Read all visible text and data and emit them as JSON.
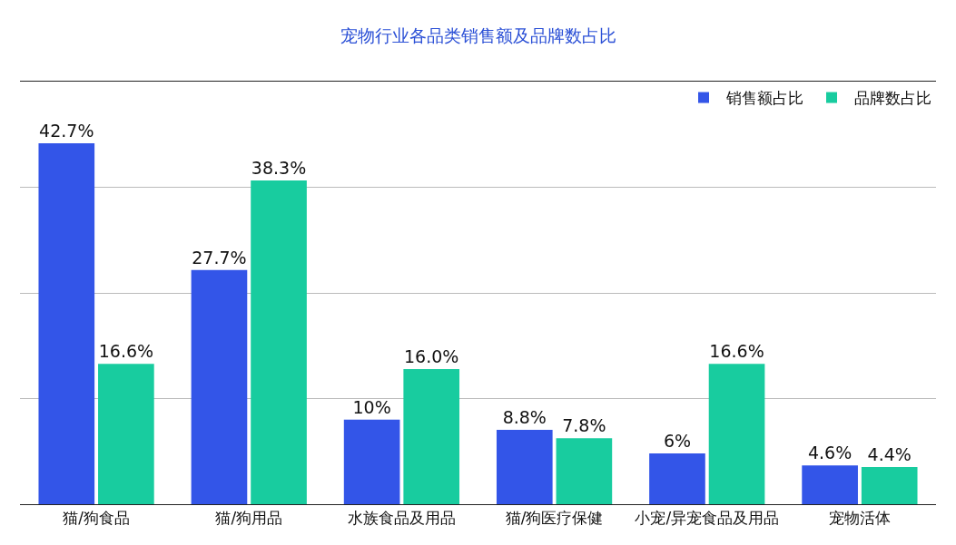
{
  "chart_data": {
    "type": "bar",
    "title": "宠物行业各品类销售额及品牌数占比",
    "categories": [
      "猫/狗食品",
      "猫/狗用品",
      "水族食品及用品",
      "猫/狗医疗保健",
      "小宠/异宠食品及用品",
      "宠物活体"
    ],
    "series": [
      {
        "name": "销售额占比",
        "color": "#3355e8",
        "values": [
          42.7,
          27.7,
          10,
          8.8,
          6,
          4.6
        ],
        "value_labels": [
          "42.7%",
          "27.7%",
          "10%",
          "8.8%",
          "6%",
          "4.6%"
        ]
      },
      {
        "name": "品牌数占比",
        "color": "#18cc9f",
        "values": [
          16.6,
          38.3,
          16.0,
          7.8,
          16.6,
          4.4
        ],
        "value_labels": [
          "16.6%",
          "38.3%",
          "16.0%",
          "7.8%",
          "16.6%",
          "4.4%"
        ]
      }
    ],
    "ylim": [
      0,
      50
    ],
    "yticks": [
      {
        "value": 0,
        "label": null
      },
      {
        "value": 12.5,
        "label": null
      },
      {
        "value": 25,
        "label": null
      },
      {
        "value": 37.5,
        "label": null
      },
      {
        "value": 50,
        "label": null
      }
    ],
    "tick_labels": "x",
    "grid": "y",
    "legend": "top right"
  }
}
